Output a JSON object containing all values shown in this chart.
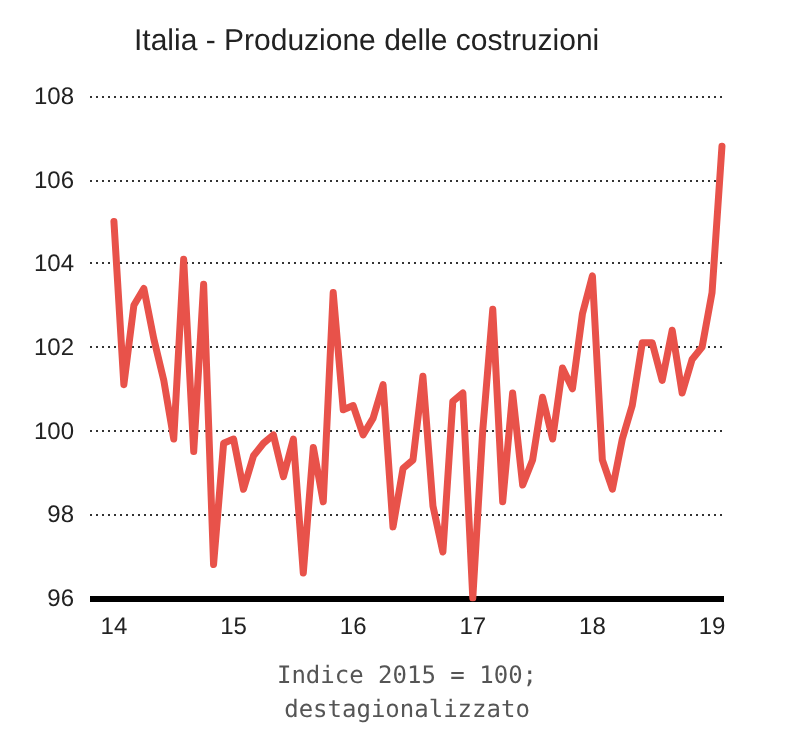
{
  "chart_data": {
    "type": "line",
    "title": "Italia - Produzione delle costruzioni",
    "xlabel": "Indice 2015 = 100;\ndestagionalizzato",
    "x": [
      14,
      14.083,
      14.167,
      14.25,
      14.333,
      14.417,
      14.5,
      14.583,
      14.667,
      14.75,
      14.833,
      14.917,
      15,
      15.083,
      15.167,
      15.25,
      15.333,
      15.417,
      15.5,
      15.583,
      15.667,
      15.75,
      15.833,
      15.917,
      16,
      16.083,
      16.167,
      16.25,
      16.333,
      16.417,
      16.5,
      16.583,
      16.667,
      16.75,
      16.833,
      16.917,
      17,
      17.083,
      17.167,
      17.25,
      17.333,
      17.417,
      17.5,
      17.583,
      17.667,
      17.75,
      17.833,
      17.917,
      18,
      18.083,
      18.167,
      18.25,
      18.333,
      18.417,
      18.5,
      18.583,
      18.667,
      18.75,
      18.833,
      18.917,
      19,
      19.083
    ],
    "series": [
      {
        "color": "#e8524a",
        "values": [
          105,
          101.1,
          103,
          103.4,
          102.2,
          101.2,
          99.8,
          104.1,
          99.5,
          103.5,
          96.8,
          99.7,
          99.8,
          98.6,
          99.4,
          99.7,
          99.9,
          98.9,
          99.8,
          96.6,
          99.6,
          98.3,
          103.3,
          100.5,
          100.6,
          99.9,
          100.3,
          101.1,
          97.7,
          99.1,
          99.3,
          101.3,
          98.2,
          97.1,
          100.7,
          100.9,
          96,
          100,
          102.9,
          98.3,
          100.9,
          98.7,
          99.3,
          100.8,
          99.8,
          101.5,
          101,
          102.8,
          103.7,
          99.3,
          98.6,
          99.8,
          100.6,
          102.1,
          102.1,
          101.2,
          102.4,
          100.9,
          101.7,
          102,
          103.3,
          106.8
        ]
      }
    ],
    "xlim": [
      13.8,
      19.1
    ],
    "xticks": [
      14,
      15,
      16,
      17,
      18,
      19
    ],
    "ylim": [
      96,
      108
    ],
    "yticks": [
      96,
      98,
      100,
      102,
      104,
      106,
      108
    ],
    "grid": "y",
    "marker": "none",
    "line_style": "solid"
  }
}
